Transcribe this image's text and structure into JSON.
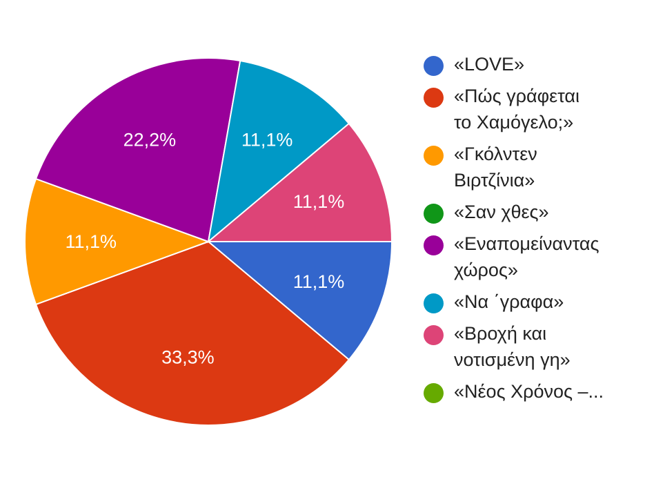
{
  "chart_data": {
    "type": "pie",
    "slices": [
      {
        "label": "«LOVE»",
        "value": 11.1,
        "display": "11,1%",
        "color": "#3366cc"
      },
      {
        "label": "«Πώς γράφεται\nτο Χαμόγελο;»",
        "value": 33.3,
        "display": "33,3%",
        "color": "#dc3912"
      },
      {
        "label": "«Γκόλντεν\nΒιρτζίνια»",
        "value": 11.1,
        "display": "11,1%",
        "color": "#ff9900"
      },
      {
        "label": "«Σαν χθες»",
        "value": 0,
        "display": "",
        "color": "#109618"
      },
      {
        "label": "«Εναπομείναντας\nχώρος»",
        "value": 22.2,
        "display": "22,2%",
        "color": "#990099"
      },
      {
        "label": "«Να ΄γραφα»",
        "value": 11.1,
        "display": "11,1%",
        "color": "#0099c6"
      },
      {
        "label": "«Βροχή και\nνοτισμένη γη»",
        "value": 11.1,
        "display": "11,1%",
        "color": "#dd4477"
      },
      {
        "label": "«Νέος Χρόνος –...",
        "value": 0,
        "display": "",
        "color": "#66aa00"
      }
    ],
    "start_angle": "3 o'clock, clockwise",
    "legend_position": "right"
  }
}
